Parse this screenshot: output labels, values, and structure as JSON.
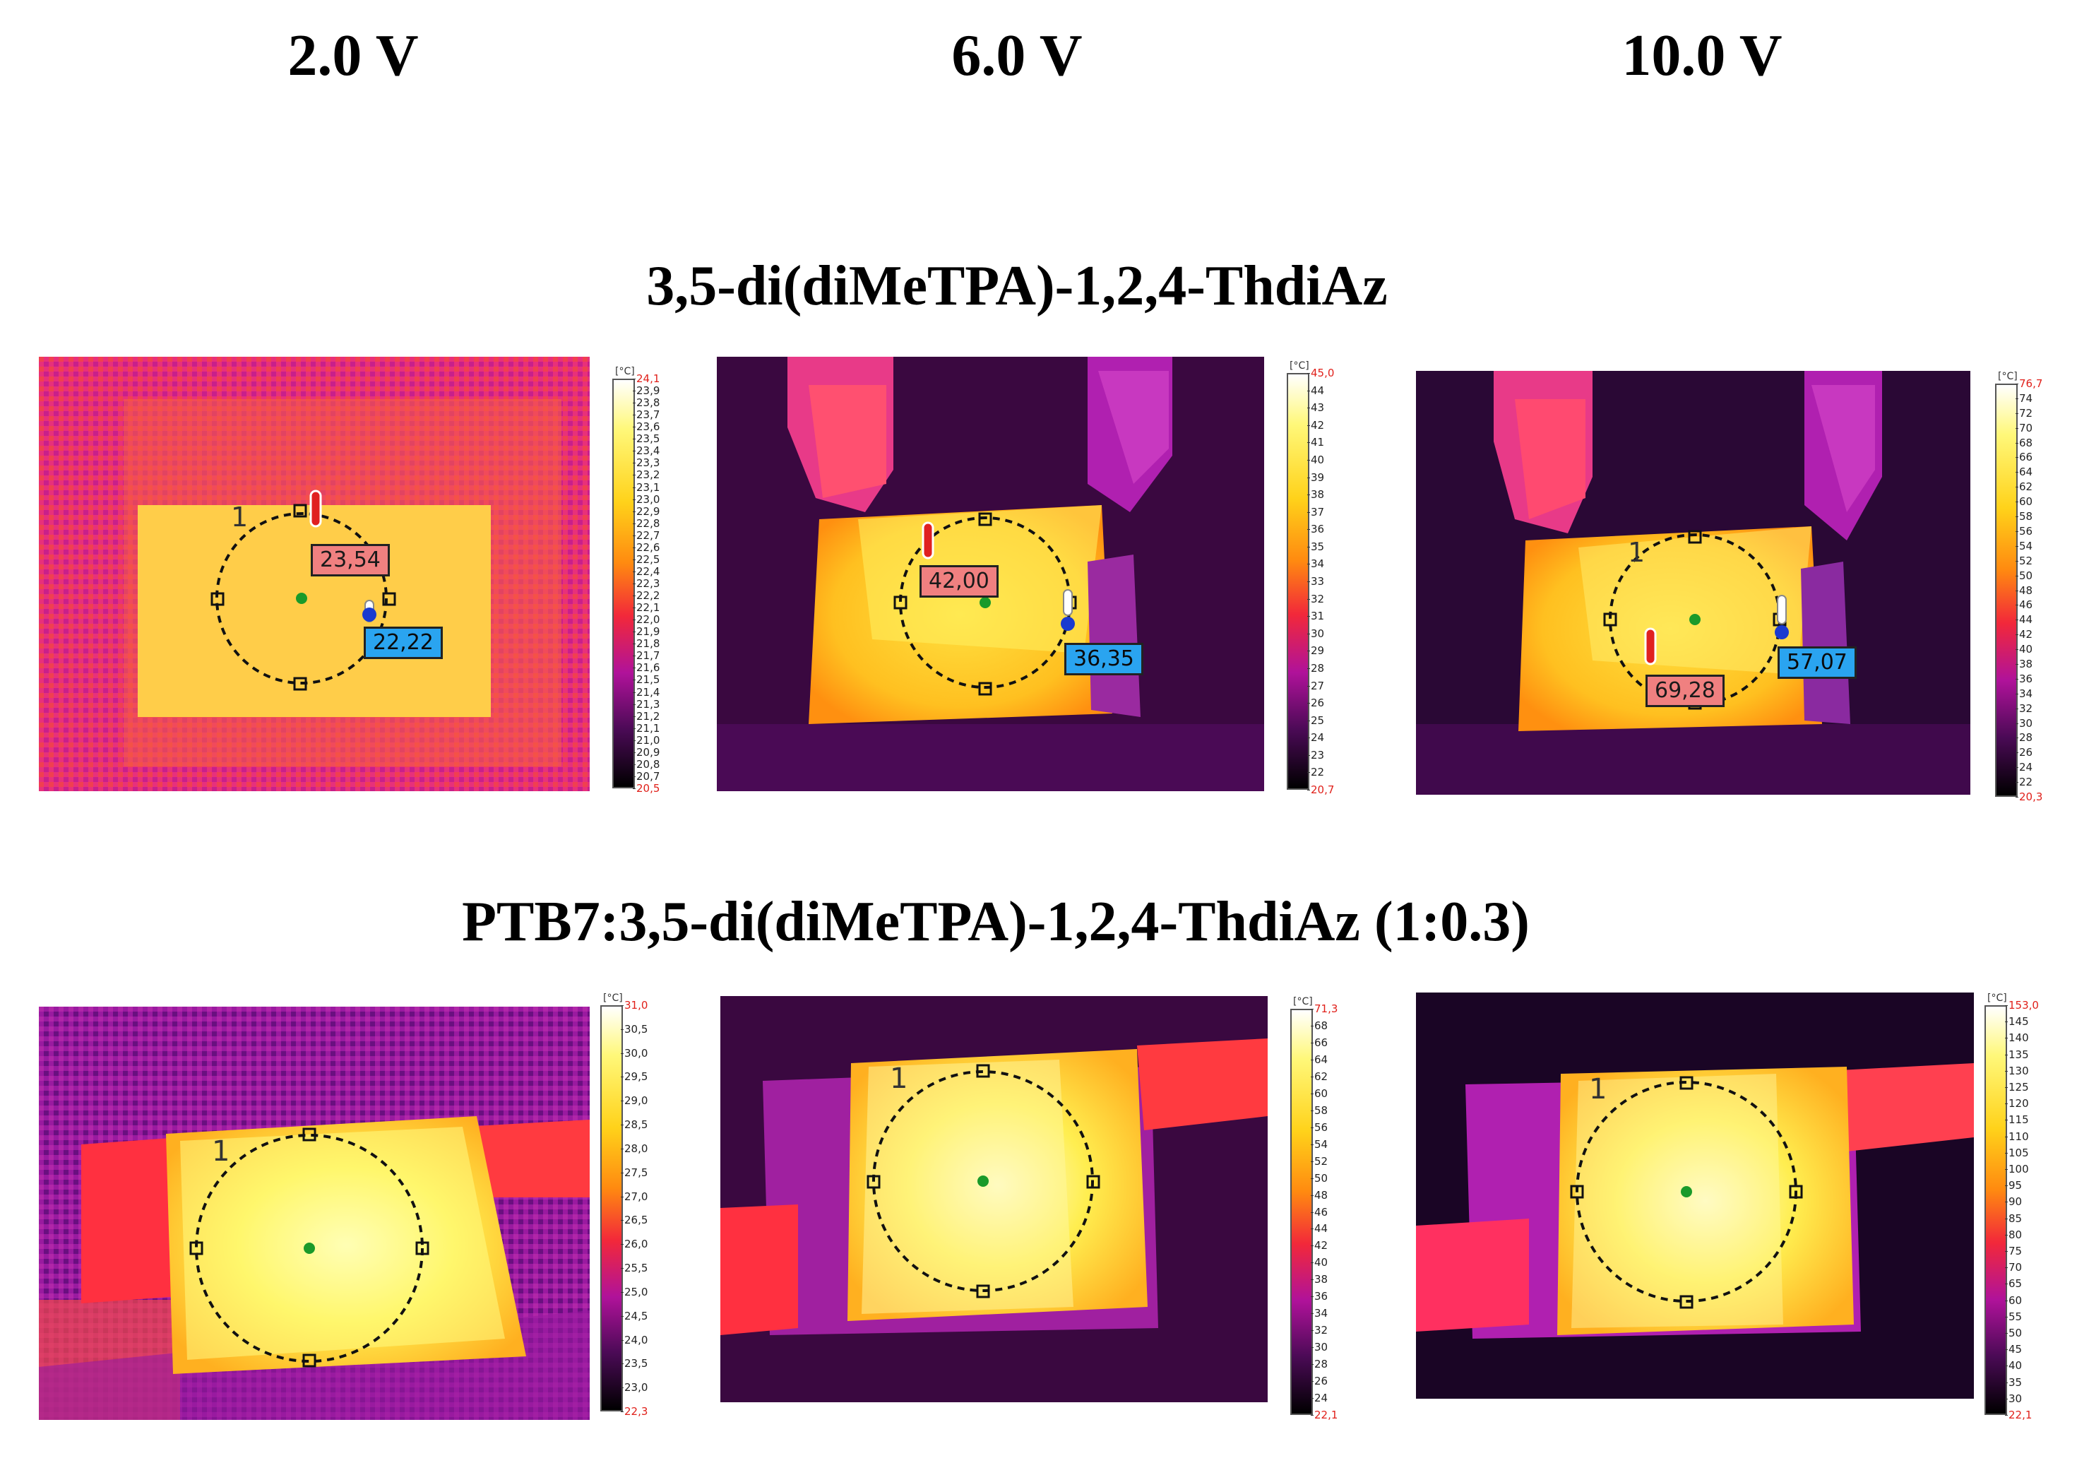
{
  "headers": [
    "2.0 V",
    "6.0 V",
    "10.0 V"
  ],
  "rows": [
    {
      "title": "3,5-di(diMeTPA)-1,2,4-ThdiAz",
      "panels": [
        {
          "hot": "23,54",
          "cold": "22,22",
          "region": "1",
          "scale": {
            "unit": "[°C]",
            "max": "24,1",
            "min": "20,5",
            "ticks": [
              "23,9",
              "23,8",
              "23,7",
              "23,6",
              "23,5",
              "23,4",
              "23,3",
              "23,2",
              "23,1",
              "23,0",
              "22,9",
              "22,8",
              "22,7",
              "22,6",
              "22,5",
              "22,4",
              "22,3",
              "22,2",
              "22,1",
              "22,0",
              "21,9",
              "21,8",
              "21,7",
              "21,6",
              "21,5",
              "21,4",
              "21,3",
              "21,2",
              "21,1",
              "21,0",
              "20,9",
              "20,8",
              "20,7"
            ]
          }
        },
        {
          "hot": "42,00",
          "cold": "36,35",
          "region": "1",
          "scale": {
            "unit": "[°C]",
            "max": "45,0",
            "min": "20,7",
            "ticks": [
              "44",
              "43",
              "42",
              "41",
              "40",
              "39",
              "38",
              "37",
              "36",
              "35",
              "34",
              "33",
              "32",
              "31",
              "30",
              "29",
              "28",
              "27",
              "26",
              "25",
              "24",
              "23",
              "22"
            ]
          }
        },
        {
          "hot": "69,28",
          "cold": "57,07",
          "region": "1",
          "scale": {
            "unit": "[°C]",
            "max": "76,7",
            "min": "20,3",
            "ticks": [
              "74",
              "72",
              "70",
              "68",
              "66",
              "64",
              "62",
              "60",
              "58",
              "56",
              "54",
              "52",
              "50",
              "48",
              "46",
              "44",
              "42",
              "40",
              "38",
              "36",
              "34",
              "32",
              "30",
              "28",
              "26",
              "24",
              "22"
            ]
          }
        }
      ]
    },
    {
      "title": "PTB7:3,5-di(diMeTPA)-1,2,4-ThdiAz  (1:0.3)",
      "panels": [
        {
          "region": "1",
          "scale": {
            "unit": "[°C]",
            "max": "31,0",
            "min": "22,3",
            "ticks": [
              "30,5",
              "30,0",
              "29,5",
              "29,0",
              "28,5",
              "28,0",
              "27,5",
              "27,0",
              "26,5",
              "26,0",
              "25,5",
              "25,0",
              "24,5",
              "24,0",
              "23,5",
              "23,0"
            ]
          }
        },
        {
          "region": "1",
          "scale": {
            "unit": "[°C]",
            "max": "71,3",
            "min": "22,1",
            "ticks": [
              "68",
              "66",
              "64",
              "62",
              "60",
              "58",
              "56",
              "54",
              "52",
              "50",
              "48",
              "46",
              "44",
              "42",
              "40",
              "38",
              "36",
              "34",
              "32",
              "30",
              "28",
              "26",
              "24"
            ]
          }
        },
        {
          "region": "1",
          "scale": {
            "unit": "[°C]",
            "max": "153,0",
            "min": "22,1",
            "ticks": [
              "145",
              "140",
              "135",
              "130",
              "125",
              "120",
              "115",
              "110",
              "105",
              "100",
              "95",
              "90",
              "85",
              "80",
              "75",
              "70",
              "65",
              "60",
              "55",
              "50",
              "45",
              "40",
              "35",
              "30"
            ]
          }
        }
      ]
    }
  ],
  "colors": {
    "palette": "ironbow",
    "hot_label": "#f08080",
    "cold_label": "#2aa4f0",
    "scale_extreme": "#e0201a"
  }
}
